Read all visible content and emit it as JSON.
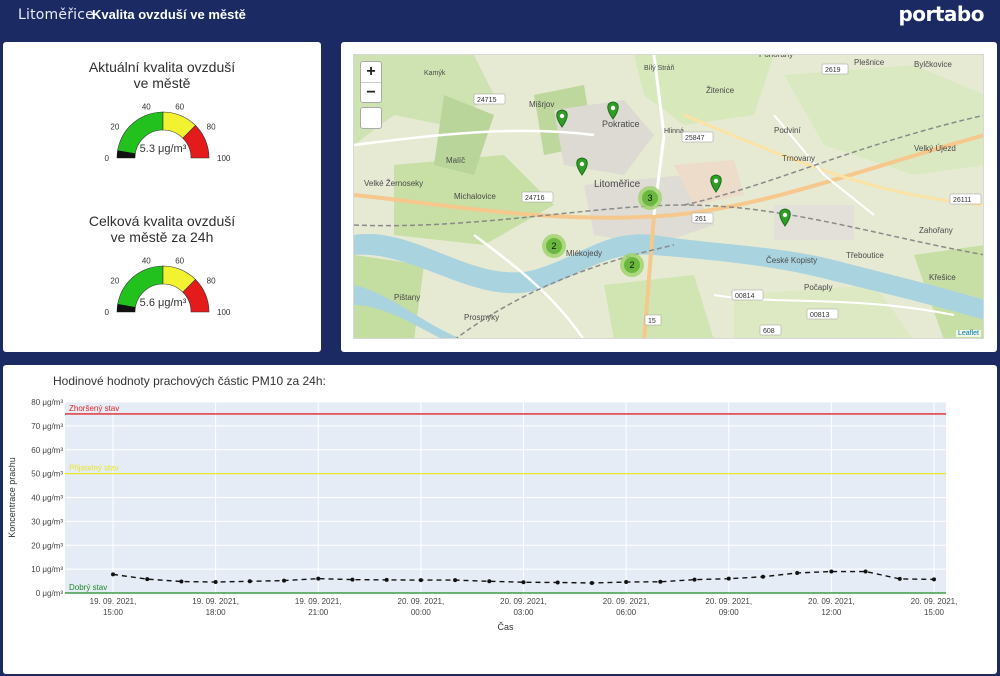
{
  "header": {
    "logo_left": "Litoměřice",
    "title": "Kvalita ovzduší ve městě",
    "logo_right": "portabo"
  },
  "gauges": [
    {
      "title_line1": "Aktuální kvalita ovzduší",
      "title_line2": "ve městě",
      "value": 5.3,
      "value_text": "5.3 μg/m³",
      "ticks": [
        "0",
        "20",
        "40",
        "60",
        "80",
        "100"
      ],
      "bands": [
        {
          "from": 0,
          "to": 50,
          "color": "#22c11e"
        },
        {
          "from": 50,
          "to": 75,
          "color": "#f2f231"
        },
        {
          "from": 75,
          "to": 100,
          "color": "#e31b1b"
        }
      ]
    },
    {
      "title_line1": "Celková kvalita ovzduší",
      "title_line2": "ve městě za 24h",
      "value": 5.6,
      "value_text": "5.6 μg/m³",
      "ticks": [
        "0",
        "20",
        "40",
        "60",
        "80",
        "100"
      ],
      "bands": [
        {
          "from": 0,
          "to": 50,
          "color": "#22c11e"
        },
        {
          "from": 50,
          "to": 75,
          "color": "#f2f231"
        },
        {
          "from": 75,
          "to": 100,
          "color": "#e31b1b"
        }
      ]
    }
  ],
  "map": {
    "zoom_in": "+",
    "zoom_out": "−",
    "attribution": "Leaflet",
    "labels": [
      "Litoměřice",
      "Pokratice",
      "Mlékojedy",
      "České Kopisty",
      "Žitenice",
      "Trnovany",
      "Podviní",
      "Velký Újezd",
      "Michalovice",
      "Malíč",
      "Velké Žernoseky",
      "Pištany",
      "Prosmyky",
      "Křešice",
      "Počaply",
      "Hlinná",
      "Kamýk",
      "Plešnice",
      "Bílý Stráň",
      "Třeboutice",
      "Zahořany",
      "Bylčkovice",
      "Pohorany",
      "Mišrjov"
    ],
    "road_numbers": [
      "261",
      "2619",
      "24715",
      "25847",
      "24716",
      "26111",
      "00814",
      "00813",
      "15",
      "608",
      "3"
    ],
    "markers_pin": 5,
    "clusters": [
      "3",
      "2",
      "2"
    ]
  },
  "chart_data": {
    "type": "line",
    "title": "Hodinové hodnoty prachových částic PM10 za 24h:",
    "xlabel": "Čas",
    "ylabel": "Koncentrace prachu",
    "ylim": [
      0,
      80
    ],
    "yticks": [
      "0 μg/m³",
      "10 μg/m³",
      "20 μg/m³",
      "30 μg/m³",
      "40 μg/m³",
      "50 μg/m³",
      "60 μg/m³",
      "70 μg/m³",
      "80 μg/m³"
    ],
    "xticks": [
      {
        "line1": "19. 09. 2021,",
        "line2": "15:00"
      },
      {
        "line1": "19. 09. 2021,",
        "line2": "18:00"
      },
      {
        "line1": "19. 09. 2021,",
        "line2": "21:00"
      },
      {
        "line1": "20. 09. 2021,",
        "line2": "00:00"
      },
      {
        "line1": "20. 09. 2021,",
        "line2": "03:00"
      },
      {
        "line1": "20. 09. 2021,",
        "line2": "06:00"
      },
      {
        "line1": "20. 09. 2021,",
        "line2": "09:00"
      },
      {
        "line1": "20. 09. 2021,",
        "line2": "12:00"
      },
      {
        "line1": "20. 09. 2021,",
        "line2": "15:00"
      }
    ],
    "thresholds": [
      {
        "label": "Zhoršený stav",
        "value": 75,
        "color": "#e0262a"
      },
      {
        "label": "Přijatelný stav",
        "value": 50,
        "color": "#e7e72a"
      },
      {
        "label": "Dobrý stav",
        "value": 0,
        "color": "#1c8a26"
      }
    ],
    "series": [
      {
        "values": [
          7.8,
          5.8,
          4.8,
          4.6,
          4.9,
          5.2,
          6.0,
          5.6,
          5.5,
          5.4,
          5.4,
          4.9,
          4.5,
          4.4,
          4.2,
          4.6,
          4.7,
          5.6,
          6.0,
          6.8,
          8.4,
          9.0,
          9.0,
          5.9,
          5.7
        ]
      }
    ]
  }
}
